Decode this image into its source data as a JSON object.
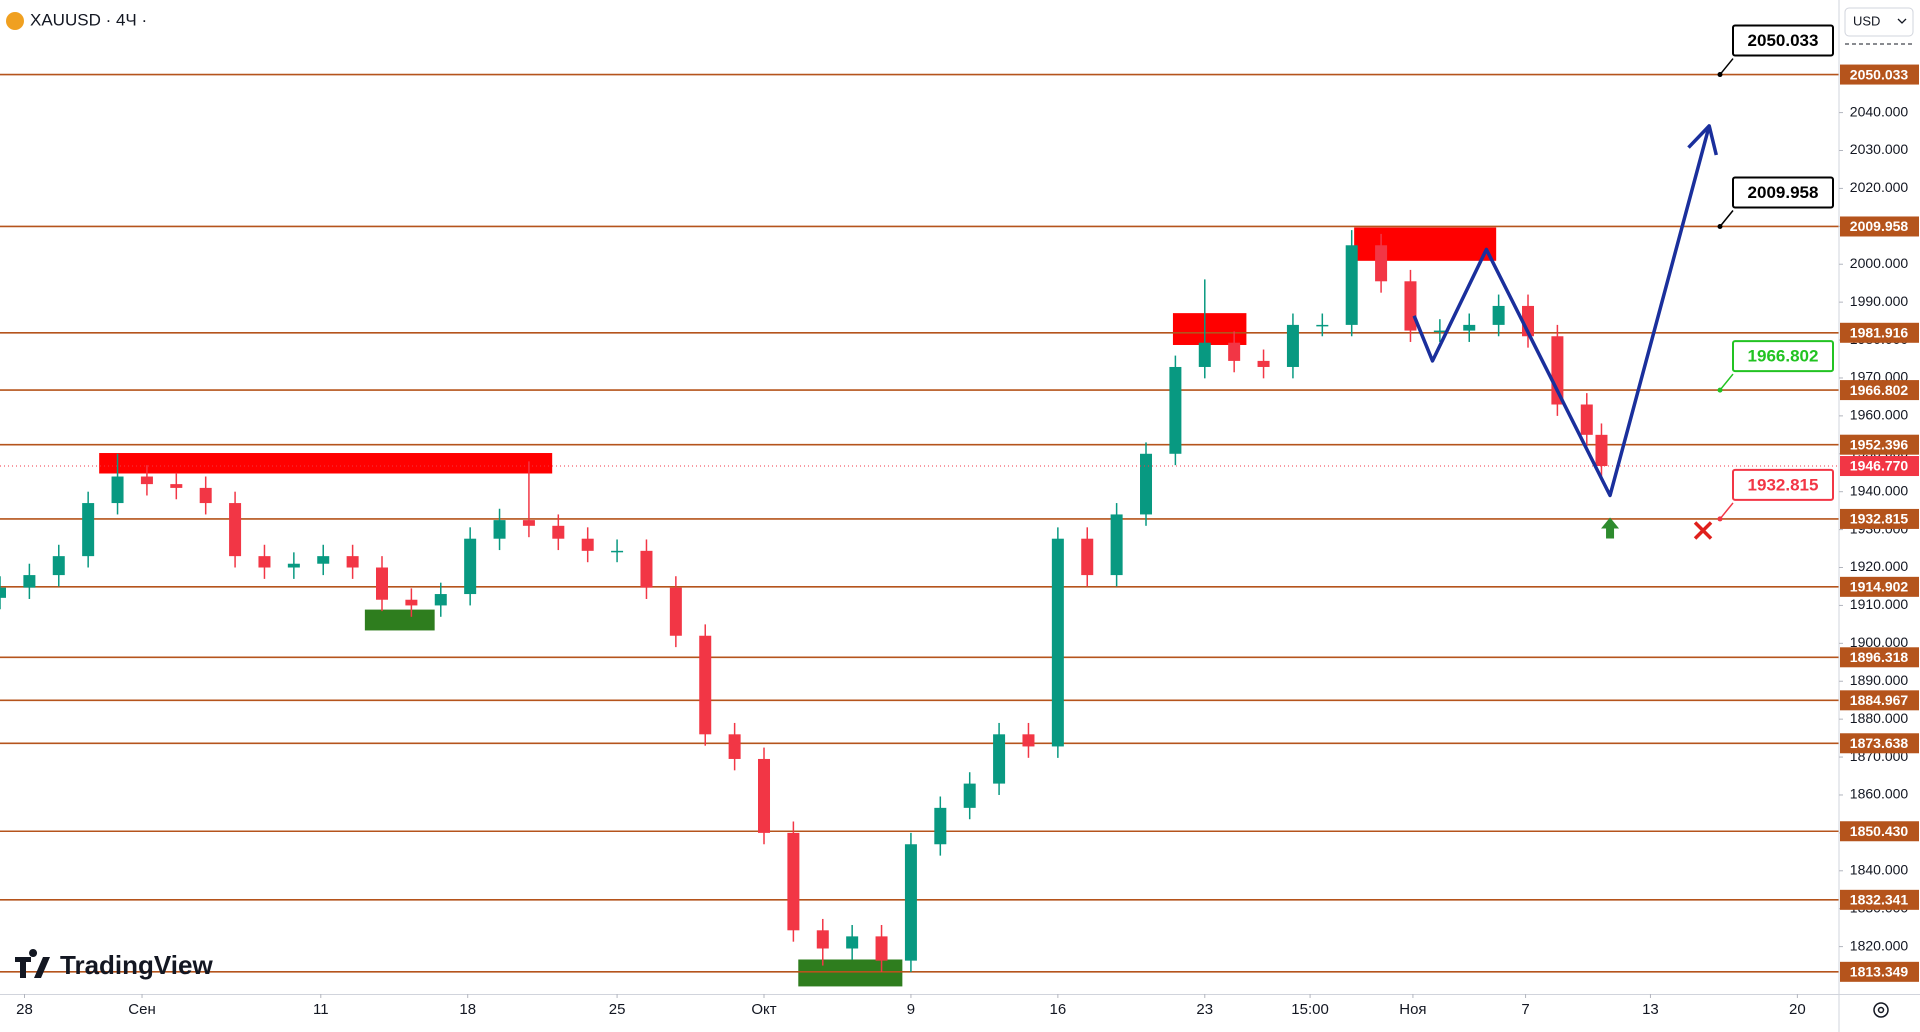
{
  "header": {
    "symbol": "XAUUSD · 4Ч ·",
    "currency": "USD",
    "logo": "TradingView"
  },
  "chart_data": {
    "type": "candlestick",
    "up_color": "#089981",
    "down_color": "#f23645",
    "xlim": [
      0,
      375.5
    ],
    "xticks": [
      {
        "value": 5,
        "label": "28"
      },
      {
        "value": 29,
        "label": "Сен"
      },
      {
        "value": 65.5,
        "label": "11"
      },
      {
        "value": 95.5,
        "label": "18"
      },
      {
        "value": 126,
        "label": "25"
      },
      {
        "value": 156,
        "label": "Окт"
      },
      {
        "value": 186,
        "label": "9"
      },
      {
        "value": 216,
        "label": "16"
      },
      {
        "value": 246,
        "label": "23"
      },
      {
        "value": 267.5,
        "label": "15:00"
      },
      {
        "value": 288.5,
        "label": "Ноя"
      },
      {
        "value": 311.5,
        "label": "7"
      },
      {
        "value": 337,
        "label": "13"
      },
      {
        "value": 367,
        "label": "20"
      }
    ],
    "ylim": [
      1807.5,
      2069.7
    ],
    "yticks": [
      {
        "value": 1820,
        "label": "1820.000"
      },
      {
        "value": 1830,
        "label": "1830.000"
      },
      {
        "value": 1840,
        "label": "1840.000"
      },
      {
        "value": 1850,
        "label": "1850.000"
      },
      {
        "value": 1860,
        "label": "1860.000"
      },
      {
        "value": 1870,
        "label": "1870.000"
      },
      {
        "value": 1880,
        "label": "1880.000"
      },
      {
        "value": 1890,
        "label": "1890.000"
      },
      {
        "value": 1900,
        "label": "1900.000"
      },
      {
        "value": 1910,
        "label": "1910.000"
      },
      {
        "value": 1920,
        "label": "1920.000"
      },
      {
        "value": 1930,
        "label": "1930.000"
      },
      {
        "value": 1940,
        "label": "1940.000"
      },
      {
        "value": 1950,
        "label": "1950.000"
      },
      {
        "value": 1960,
        "label": "1960.000"
      },
      {
        "value": 1970,
        "label": "1970.000"
      },
      {
        "value": 1980,
        "label": "1980.000"
      },
      {
        "value": 1990,
        "label": "1990.000"
      },
      {
        "value": 2000,
        "label": "2000.000"
      },
      {
        "value": 2010,
        "label": "2010.000"
      },
      {
        "value": 2020,
        "label": "2020.000"
      },
      {
        "value": 2030,
        "label": "2030.000"
      },
      {
        "value": 2040,
        "label": "2040.000"
      }
    ],
    "x": [
      0,
      6,
      12,
      18,
      24,
      30,
      36,
      42,
      48,
      54,
      60,
      66,
      72,
      78,
      84,
      90,
      96,
      102,
      108,
      114,
      120,
      126,
      132,
      138,
      144,
      150,
      156,
      162,
      168,
      174,
      180,
      186,
      192,
      198,
      204,
      210,
      216,
      222,
      228,
      234,
      240,
      246,
      252,
      258,
      264,
      270,
      276,
      282,
      288,
      294,
      300,
      306,
      312,
      318,
      324,
      327
    ],
    "open": [
      1912,
      1914.7,
      1918,
      1923,
      1937,
      1944,
      1942,
      1941,
      1937,
      1923,
      1920,
      1921,
      1923,
      1920,
      1911.5,
      1910,
      1913,
      1927.6,
      1932.5,
      1931,
      1927.6,
      1924.4,
      1924.4,
      1914.7,
      1902,
      1876,
      1869.5,
      1850,
      1824.3,
      1819.5,
      1822.7,
      1816.3,
      1847,
      1856.6,
      1863,
      1876,
      1872.8,
      1927.6,
      1918,
      1934,
      1950,
      1972.9,
      1979.3,
      1974.5,
      1972.9,
      1984,
      1984,
      2005,
      1995.5,
      1982.5,
      1982.5,
      1984,
      1989,
      1981,
      1963,
      1955
    ],
    "high": [
      1917.7,
      1921,
      1926,
      1940,
      1950,
      1947,
      1945,
      1944,
      1940,
      1926,
      1924,
      1926,
      1926,
      1923,
      1914.5,
      1916,
      1930.6,
      1935.5,
      1948,
      1934,
      1930.6,
      1927.4,
      1927.4,
      1917.7,
      1905,
      1879,
      1872.5,
      1853,
      1827.3,
      1825.7,
      1825.7,
      1850,
      1859.6,
      1866,
      1879,
      1879,
      1930.6,
      1930.6,
      1937,
      1953,
      1975.9,
      1996,
      1982.3,
      1977.5,
      1987,
      1987,
      2009,
      2008,
      1998.5,
      1985.5,
      1987,
      1992,
      1992,
      1984,
      1966,
      1958
    ],
    "low": [
      1909,
      1911.7,
      1915,
      1920,
      1934,
      1939,
      1938,
      1934,
      1920,
      1917,
      1917,
      1918,
      1917,
      1908.5,
      1907,
      1907,
      1910,
      1924.6,
      1928,
      1924.6,
      1921.4,
      1921.4,
      1911.7,
      1899,
      1873,
      1866.5,
      1847,
      1821.3,
      1815,
      1816.5,
      1813.3,
      1813.3,
      1844,
      1853.6,
      1860,
      1869.8,
      1869.8,
      1915,
      1915,
      1931,
      1947,
      1969.9,
      1971.5,
      1969.9,
      1969.9,
      1981,
      1981,
      1992.5,
      1979.5,
      1979.5,
      1979.5,
      1981,
      1978,
      1960,
      1952,
      1944
    ],
    "close": [
      1914.7,
      1918,
      1923,
      1937,
      1944,
      1942,
      1941,
      1937,
      1923,
      1920,
      1921,
      1923,
      1920,
      1911.5,
      1910,
      1913,
      1927.6,
      1932.5,
      1931,
      1927.6,
      1924.4,
      1924.4,
      1914.7,
      1902,
      1876,
      1869.5,
      1850,
      1824.3,
      1819.5,
      1822.7,
      1816.3,
      1847,
      1856.6,
      1863,
      1876,
      1872.8,
      1927.6,
      1918,
      1934,
      1950,
      1972.9,
      1979.3,
      1974.5,
      1972.9,
      1984,
      1984,
      2005,
      1995.5,
      1982.5,
      1982.5,
      1984,
      1989,
      1981,
      1963,
      1955,
      1946.77
    ],
    "levels_color": "#b5541c",
    "levels": [
      {
        "value": 2050.033,
        "label": "2050.033"
      },
      {
        "value": 2009.958,
        "label": "2009.958"
      },
      {
        "value": 1981.916,
        "label": "1981.916"
      },
      {
        "value": 1966.802,
        "label": "1966.802"
      },
      {
        "value": 1952.396,
        "label": "1952.396"
      },
      {
        "value": 1932.815,
        "label": "1932.815"
      },
      {
        "value": 1914.902,
        "label": "1914.902"
      },
      {
        "value": 1896.318,
        "label": "1896.318"
      },
      {
        "value": 1884.967,
        "label": "1884.967"
      },
      {
        "value": 1873.638,
        "label": "1873.638"
      },
      {
        "value": 1850.43,
        "label": "1850.430"
      },
      {
        "value": 1832.341,
        "label": "1832.341"
      },
      {
        "value": 1813.349,
        "label": "1813.349"
      }
    ],
    "current_price": {
      "value": 1946.77,
      "label": "1946.770",
      "color": "#f23645"
    },
    "zones": [
      {
        "color": "#ff0000",
        "x": [
          20.25,
          112.75
        ],
        "y": [
          1944.8,
          1950.2
        ]
      },
      {
        "color": "#ff0000",
        "x": [
          239.5,
          254.5
        ],
        "y": [
          1978.7,
          1987.1
        ]
      },
      {
        "color": "#ff0000",
        "x": [
          276.5,
          305.5
        ],
        "y": [
          2000.9,
          2009.7
        ]
      },
      {
        "color": "#2e7d1e",
        "x": [
          74.5,
          88.75
        ],
        "y": [
          1903.4,
          1908.9
        ]
      },
      {
        "color": "#2e7d1e",
        "x": [
          163,
          184.25
        ],
        "y": [
          1809.5,
          1816.6
        ]
      }
    ],
    "projection": {
      "color": "#1a2f9c",
      "x": [
        288.75,
        292.5,
        303.5,
        328.75,
        349
      ],
      "values": [
        1986.4,
        1974.5,
        2003.9,
        1939,
        2036.5
      ]
    },
    "callouts": [
      {
        "value": 2050.033,
        "label": "2050.033",
        "color": "#000000"
      },
      {
        "value": 2009.958,
        "label": "2009.958",
        "color": "#000000"
      },
      {
        "value": 1966.802,
        "label": "1966.802",
        "color": "#22c322"
      },
      {
        "value": 1932.815,
        "label": "1932.815",
        "color": "#f23645"
      }
    ]
  }
}
